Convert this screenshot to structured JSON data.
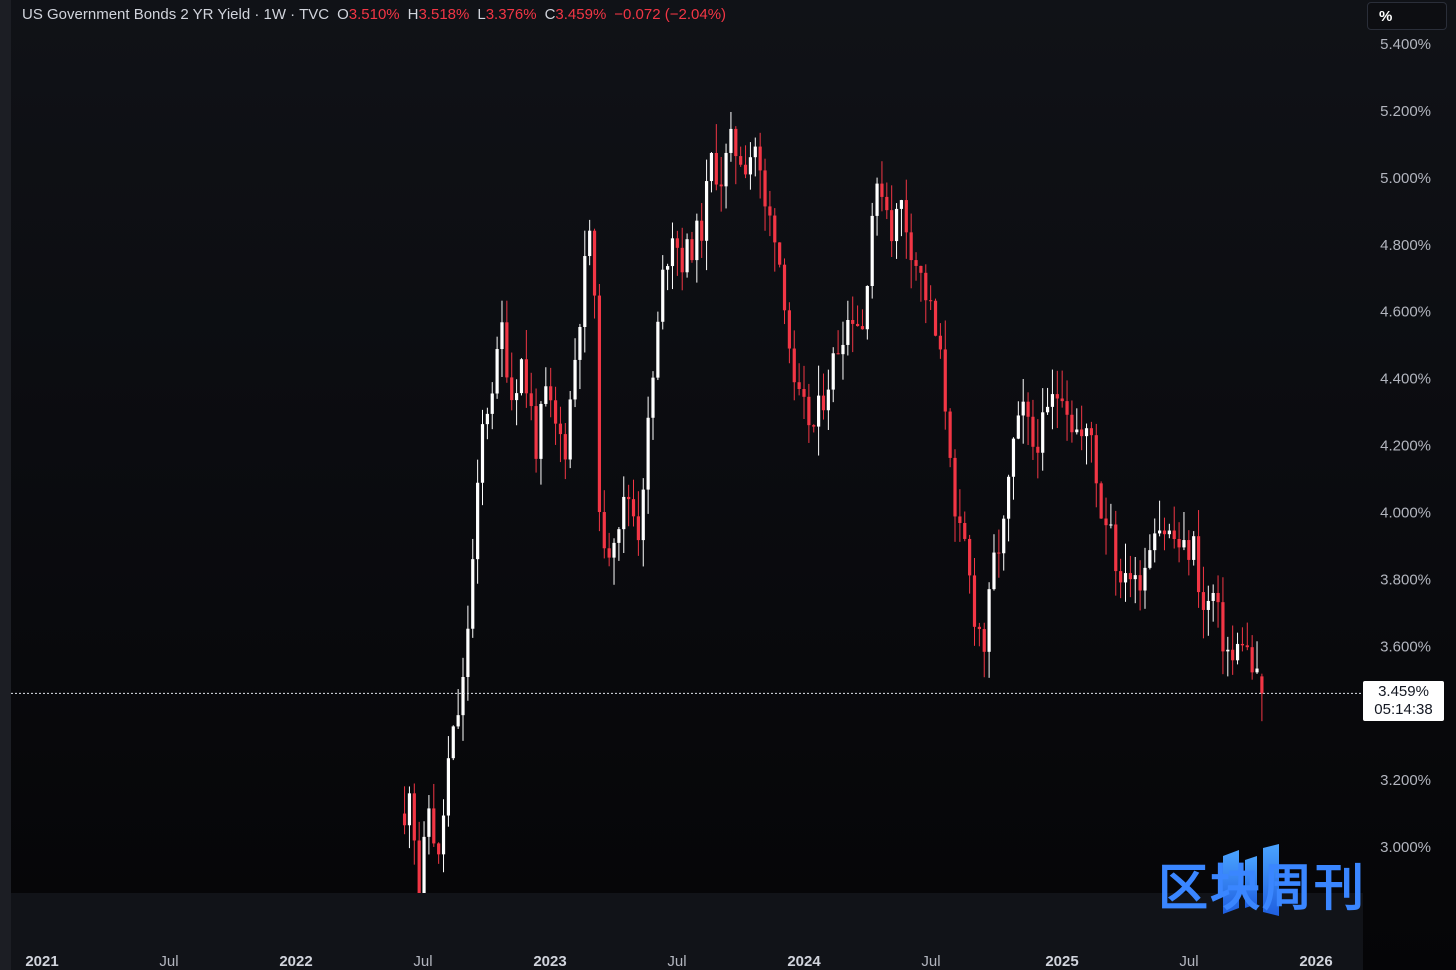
{
  "legend": {
    "symbol": "US Government Bonds 2 YR Yield · 1W · TVC",
    "open_label": "O",
    "open": "3.510%",
    "high_label": "H",
    "high": "3.518%",
    "low_label": "L",
    "low": "3.376%",
    "close_label": "C",
    "close": "3.459%",
    "change": "−0.072 (−2.04%)"
  },
  "price_axis": {
    "unit": "%",
    "ticks": [
      "5.400%",
      "5.200%",
      "5.000%",
      "4.800%",
      "4.600%",
      "4.400%",
      "4.200%",
      "4.000%",
      "3.800%",
      "3.600%",
      "3.200%",
      "3.000%"
    ]
  },
  "last_price": {
    "value": "3.459%",
    "countdown": "05:14:38"
  },
  "time_axis": {
    "labels": [
      {
        "text": "2021",
        "kind": "year"
      },
      {
        "text": "Jul",
        "kind": "month"
      },
      {
        "text": "2022",
        "kind": "year"
      },
      {
        "text": "Jul",
        "kind": "month"
      },
      {
        "text": "2023",
        "kind": "year"
      },
      {
        "text": "Jul",
        "kind": "month"
      },
      {
        "text": "2024",
        "kind": "year"
      },
      {
        "text": "Jul",
        "kind": "month"
      },
      {
        "text": "2025",
        "kind": "year"
      },
      {
        "text": "Jul",
        "kind": "month"
      },
      {
        "text": "2026",
        "kind": "year"
      }
    ]
  },
  "watermark": {
    "text": "区块周刊"
  },
  "colors": {
    "up": "#ffffff",
    "down": "#f23645",
    "background": "#0b0c10",
    "accent": "#3a86ff"
  },
  "chart_data": {
    "type": "candlestick",
    "title": "US Government Bonds 2 YR Yield",
    "interval": "1W",
    "source": "TVC",
    "ylim": [
      2.85,
      5.45
    ],
    "y_unit": "%",
    "grid": false,
    "x_start": "2022-06-06",
    "x_end": "2025-10-20",
    "anchors": [
      [
        "2022-06-06",
        3.05
      ],
      [
        "2022-06-13",
        3.2
      ],
      [
        "2022-06-20",
        3.05
      ],
      [
        "2022-06-27",
        2.85
      ],
      [
        "2022-07-11",
        3.12
      ],
      [
        "2022-07-25",
        2.95
      ],
      [
        "2022-08-08",
        3.25
      ],
      [
        "2022-08-29",
        3.48
      ],
      [
        "2022-09-12",
        3.85
      ],
      [
        "2022-09-26",
        4.25
      ],
      [
        "2022-10-17",
        4.45
      ],
      [
        "2022-10-24",
        4.55
      ],
      [
        "2022-11-07",
        4.35
      ],
      [
        "2022-11-21",
        4.45
      ],
      [
        "2022-12-05",
        4.3
      ],
      [
        "2022-12-12",
        4.2
      ],
      [
        "2022-12-26",
        4.35
      ],
      [
        "2023-01-09",
        4.25
      ],
      [
        "2023-01-23",
        4.2
      ],
      [
        "2023-02-13",
        4.6
      ],
      [
        "2023-02-27",
        4.85
      ],
      [
        "2023-03-06",
        4.6
      ],
      [
        "2023-03-13",
        4.05
      ],
      [
        "2023-03-20",
        3.85
      ],
      [
        "2023-04-03",
        3.95
      ],
      [
        "2023-04-24",
        4.05
      ],
      [
        "2023-05-08",
        3.95
      ],
      [
        "2023-05-29",
        4.4
      ],
      [
        "2023-06-12",
        4.7
      ],
      [
        "2023-06-26",
        4.85
      ],
      [
        "2023-07-10",
        4.75
      ],
      [
        "2023-07-24",
        4.8
      ],
      [
        "2023-08-07",
        4.85
      ],
      [
        "2023-08-21",
        5.05
      ],
      [
        "2023-09-04",
        5.0
      ],
      [
        "2023-09-18",
        5.1
      ],
      [
        "2023-10-09",
        5.05
      ],
      [
        "2023-10-23",
        5.1
      ],
      [
        "2023-11-06",
        4.9
      ],
      [
        "2023-11-20",
        4.85
      ],
      [
        "2023-12-04",
        4.65
      ],
      [
        "2023-12-18",
        4.35
      ],
      [
        "2024-01-01",
        4.3
      ],
      [
        "2024-01-15",
        4.25
      ],
      [
        "2024-02-05",
        4.4
      ],
      [
        "2024-02-26",
        4.55
      ],
      [
        "2024-03-11",
        4.6
      ],
      [
        "2024-03-25",
        4.55
      ],
      [
        "2024-04-08",
        4.9
      ],
      [
        "2024-04-22",
        4.98
      ],
      [
        "2024-05-06",
        4.85
      ],
      [
        "2024-05-20",
        4.92
      ],
      [
        "2024-06-03",
        4.8
      ],
      [
        "2024-06-17",
        4.7
      ],
      [
        "2024-07-01",
        4.6
      ],
      [
        "2024-07-15",
        4.45
      ],
      [
        "2024-07-29",
        4.2
      ],
      [
        "2024-08-05",
        3.95
      ],
      [
        "2024-08-19",
        3.9
      ],
      [
        "2024-09-02",
        3.7
      ],
      [
        "2024-09-16",
        3.6
      ],
      [
        "2024-09-30",
        3.85
      ],
      [
        "2024-10-14",
        3.95
      ],
      [
        "2024-10-28",
        4.2
      ],
      [
        "2024-11-11",
        4.3
      ],
      [
        "2024-11-25",
        4.2
      ],
      [
        "2024-12-09",
        4.25
      ],
      [
        "2024-12-23",
        4.33
      ],
      [
        "2025-01-06",
        4.38
      ],
      [
        "2025-01-20",
        4.27
      ],
      [
        "2025-02-03",
        4.22
      ],
      [
        "2025-02-17",
        4.23
      ],
      [
        "2025-03-03",
        4.0
      ],
      [
        "2025-03-17",
        3.98
      ],
      [
        "2025-03-31",
        3.75
      ],
      [
        "2025-04-07",
        3.85
      ],
      [
        "2025-04-21",
        3.78
      ],
      [
        "2025-05-05",
        3.85
      ],
      [
        "2025-05-19",
        3.98
      ],
      [
        "2025-06-02",
        3.95
      ],
      [
        "2025-06-16",
        3.92
      ],
      [
        "2025-06-30",
        3.88
      ],
      [
        "2025-07-14",
        3.9
      ],
      [
        "2025-07-28",
        3.7
      ],
      [
        "2025-08-11",
        3.75
      ],
      [
        "2025-08-25",
        3.62
      ],
      [
        "2025-09-08",
        3.55
      ],
      [
        "2025-09-22",
        3.63
      ],
      [
        "2025-10-06",
        3.53
      ],
      [
        "2025-10-20",
        3.459
      ]
    ],
    "last": {
      "open": 3.51,
      "high": 3.518,
      "low": 3.376,
      "close": 3.459,
      "change": -0.072,
      "change_pct": -2.04
    }
  }
}
